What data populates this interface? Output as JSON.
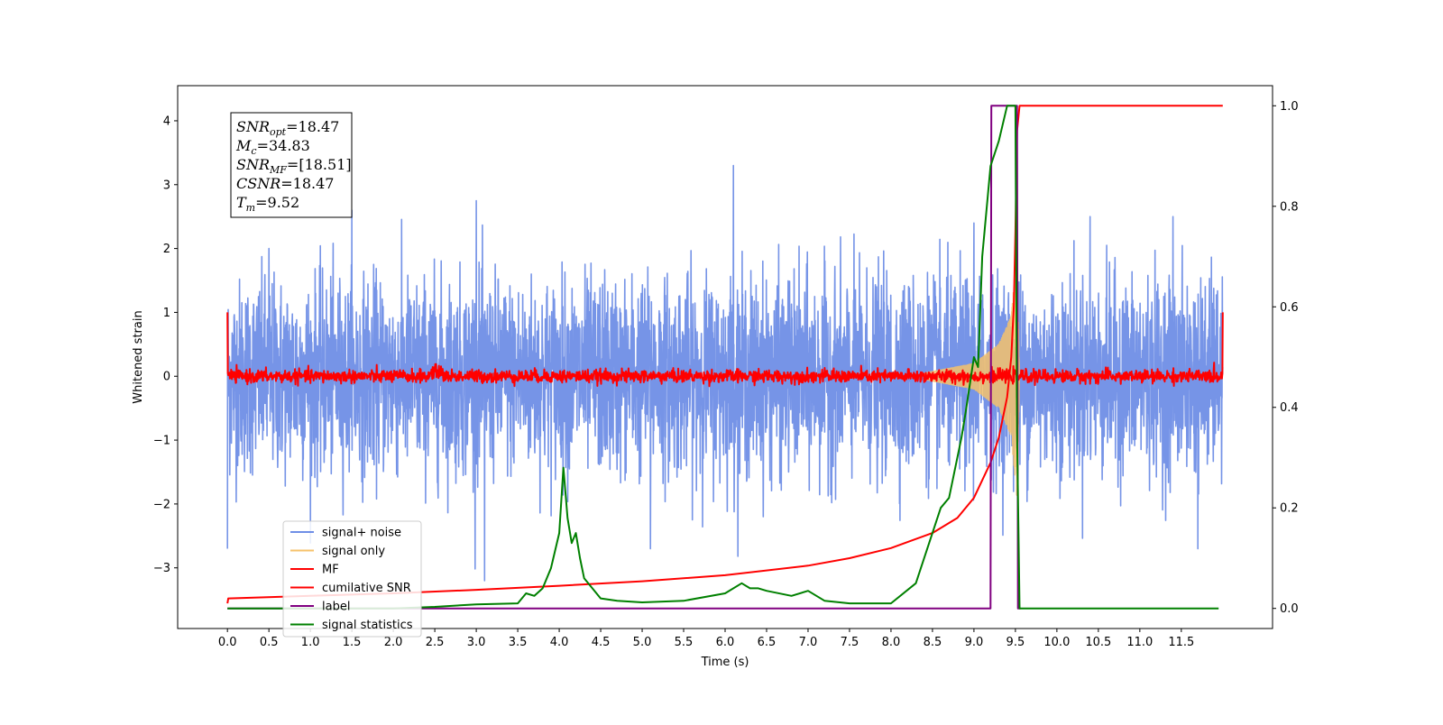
{
  "chart_data": {
    "type": "line",
    "xlabel": "Time (s)",
    "ylabel": "Whitened strain",
    "xlim": [
      -0.6,
      12.6
    ],
    "ylim": [
      -3.95,
      4.55
    ],
    "y2lim": [
      -0.04,
      1.04
    ],
    "xticks": [
      "0.0",
      "0.5",
      "1.0",
      "1.5",
      "2.0",
      "2.5",
      "3.0",
      "3.5",
      "4.0",
      "4.5",
      "5.0",
      "5.5",
      "6.0",
      "6.5",
      "7.0",
      "7.5",
      "8.0",
      "8.5",
      "9.0",
      "9.5",
      "10.0",
      "10.5",
      "11.0",
      "11.5"
    ],
    "xtick_values": [
      0,
      0.5,
      1,
      1.5,
      2,
      2.5,
      3,
      3.5,
      4,
      4.5,
      5,
      5.5,
      6,
      6.5,
      7,
      7.5,
      8,
      8.5,
      9,
      9.5,
      10,
      10.5,
      11,
      11.5
    ],
    "yticks": [
      "−3",
      "−2",
      "−1",
      "0",
      "1",
      "2",
      "3",
      "4"
    ],
    "ytick_values": [
      -3,
      -2,
      -1,
      0,
      1,
      2,
      3,
      4
    ],
    "y2ticks": [
      "0.0",
      "0.2",
      "0.4",
      "0.6",
      "0.8",
      "1.0"
    ],
    "y2tick_values": [
      0,
      0.2,
      0.4,
      0.6,
      0.8,
      1.0
    ],
    "grid": false,
    "legend_placement": "lower-left",
    "info_box": {
      "lines": [
        {
          "main": "SNR",
          "sub": "opt",
          "rest": "=18.47"
        },
        {
          "main": "M",
          "sub": "c",
          "rest": "=34.83"
        },
        {
          "main": "SNR",
          "sub": "MF",
          "rest": "=[18.51]"
        },
        {
          "main": "CSNR",
          "sub": "",
          "rest": "=18.47"
        },
        {
          "main": "T",
          "sub": "m",
          "rest": "=9.52"
        }
      ]
    },
    "series": [
      {
        "name": "signal+ noise",
        "color": "#6f8ee6",
        "axis": "left",
        "kind": "noise",
        "x_range": [
          0,
          12.0
        ],
        "amplitude_envelope": [
          [
            0,
            0.75
          ],
          [
            9.5,
            0.75
          ],
          [
            12.0,
            0.75
          ]
        ],
        "peaks": [
          [
            0.0,
            -2.7
          ],
          [
            6.1,
            3.3
          ],
          [
            3.0,
            2.75
          ],
          [
            1.5,
            2.6
          ],
          [
            3.1,
            -3.2
          ],
          [
            5.1,
            -2.7
          ],
          [
            11.7,
            -2.7
          ],
          [
            0.5,
            2.0
          ],
          [
            9.0,
            2.4
          ],
          [
            10.4,
            2.5
          ],
          [
            11.4,
            2.5
          ]
        ]
      },
      {
        "name": "signal only",
        "color": "#f6c26b",
        "axis": "left",
        "kind": "chirp",
        "x_range": [
          8.4,
          9.55
        ],
        "amplitude_envelope": [
          [
            8.4,
            0.05
          ],
          [
            9.0,
            0.2
          ],
          [
            9.3,
            0.5
          ],
          [
            9.45,
            0.95
          ],
          [
            9.52,
            2.0
          ],
          [
            9.55,
            0.0
          ]
        ]
      },
      {
        "name": "MF",
        "color": "#ff0000",
        "axis": "left",
        "kind": "noise",
        "x_range": [
          0,
          12.0
        ],
        "amplitude_envelope": [
          [
            0,
            0.05
          ],
          [
            12.0,
            0.05
          ]
        ],
        "endpoints": [
          [
            0.0,
            1.0
          ],
          [
            12.0,
            1.0
          ]
        ]
      },
      {
        "name": "cumilative SNR",
        "color": "#ff0000",
        "axis": "right",
        "x": [
          0.0,
          0.01,
          1.0,
          2.0,
          3.0,
          4.0,
          5.0,
          6.0,
          7.0,
          7.5,
          8.0,
          8.5,
          8.8,
          9.0,
          9.2,
          9.3,
          9.4,
          9.45,
          9.48,
          9.5,
          9.52,
          9.55,
          9.6,
          10.0,
          11.0,
          12.0
        ],
        "values": [
          0.01,
          0.02,
          0.025,
          0.03,
          0.037,
          0.045,
          0.054,
          0.066,
          0.085,
          0.1,
          0.12,
          0.15,
          0.18,
          0.22,
          0.29,
          0.34,
          0.42,
          0.5,
          0.6,
          0.75,
          0.95,
          1.0,
          1.0,
          1.0,
          1.0,
          1.0
        ]
      },
      {
        "name": "label",
        "color": "#800080",
        "axis": "right",
        "x": [
          0.0,
          9.2,
          9.21,
          9.52,
          9.53,
          9.56
        ],
        "values": [
          0.0,
          0.0,
          1.0,
          1.0,
          0.0,
          0.0
        ]
      },
      {
        "name": "signal statistics",
        "color": "#008000",
        "axis": "right",
        "x": [
          0.0,
          1.0,
          2.0,
          2.5,
          3.0,
          3.5,
          3.6,
          3.7,
          3.8,
          3.9,
          4.0,
          4.05,
          4.1,
          4.15,
          4.2,
          4.25,
          4.3,
          4.4,
          4.5,
          4.7,
          5.0,
          5.5,
          6.0,
          6.2,
          6.3,
          6.4,
          6.5,
          6.8,
          7.0,
          7.2,
          7.5,
          7.8,
          8.0,
          8.3,
          8.5,
          8.6,
          8.7,
          8.85,
          8.9,
          9.0,
          9.05,
          9.1,
          9.2,
          9.3,
          9.4,
          9.45,
          9.5,
          9.52,
          9.55,
          9.6,
          10.0,
          11.0,
          11.95
        ],
        "values": [
          0.0,
          0.0,
          0.0,
          0.003,
          0.008,
          0.01,
          0.03,
          0.025,
          0.04,
          0.08,
          0.15,
          0.28,
          0.18,
          0.13,
          0.15,
          0.1,
          0.06,
          0.04,
          0.02,
          0.015,
          0.012,
          0.015,
          0.03,
          0.05,
          0.04,
          0.04,
          0.035,
          0.025,
          0.035,
          0.015,
          0.01,
          0.01,
          0.01,
          0.05,
          0.15,
          0.2,
          0.22,
          0.34,
          0.39,
          0.5,
          0.48,
          0.7,
          0.88,
          0.93,
          1.0,
          1.0,
          1.0,
          0.35,
          0.0,
          0.0,
          0.0,
          0.0,
          0.0
        ]
      }
    ]
  }
}
